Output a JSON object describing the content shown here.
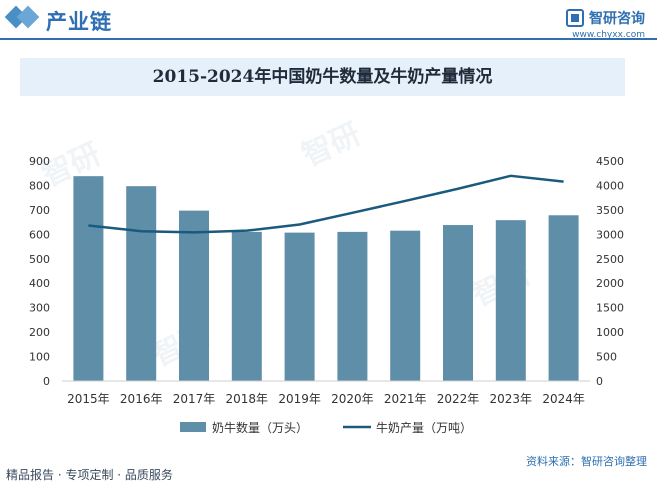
{
  "header": {
    "section_title": "产业链",
    "brand_name": "智研咨询",
    "brand_url": "www.chyxx.com"
  },
  "chart_data": {
    "type": "bar",
    "title": "2015-2024年中国奶牛数量及牛奶产量情况",
    "categories": [
      "2015年",
      "2016年",
      "2017年",
      "2018年",
      "2019年",
      "2020年",
      "2021年",
      "2022年",
      "2023年",
      "2024年"
    ],
    "series": [
      {
        "name": "奶牛数量（万头）",
        "type": "bar",
        "axis": "left",
        "color": "#5f8fa8",
        "values": [
          838,
          797,
          697,
          610,
          607,
          610,
          615,
          638,
          658,
          678
        ]
      },
      {
        "name": "牛奶产量（万吨）",
        "type": "line",
        "axis": "right",
        "color": "#1a5a7e",
        "values": [
          3180,
          3064,
          3039,
          3075,
          3201,
          3440,
          3683,
          3932,
          4197,
          4079
        ]
      }
    ],
    "y_left": {
      "min": 0,
      "max": 900,
      "ticks": [
        "0",
        "100",
        "200",
        "300",
        "400",
        "500",
        "600",
        "700",
        "800",
        "900"
      ]
    },
    "y_right": {
      "min": 0,
      "max": 4500,
      "ticks": [
        "0",
        "500",
        "1000",
        "1500",
        "2000",
        "2500",
        "3000",
        "3500",
        "4000",
        "4500"
      ]
    },
    "grid": false,
    "legend_position": "bottom"
  },
  "footer": {
    "left": "精品报告 · 专项定制 · 品质服务",
    "right": "资料来源：智研咨询整理"
  }
}
